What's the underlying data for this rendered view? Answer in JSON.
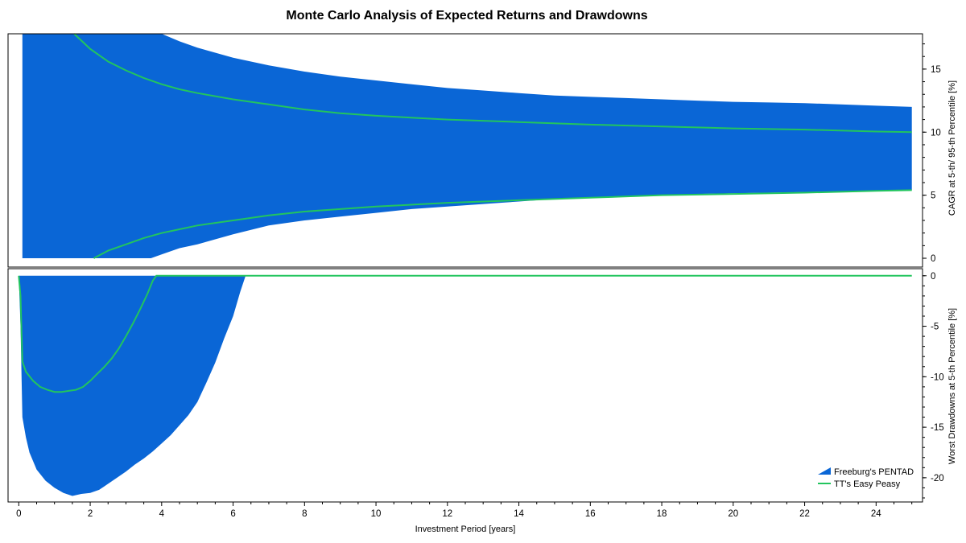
{
  "chart_data": {
    "type": "area",
    "title": "Monte Carlo Analysis of Expected Returns and Drawdowns",
    "xlabel": "Investment Period [years]",
    "xlim": [
      -0.3,
      25.3
    ],
    "x_ticks": [
      0,
      2,
      4,
      6,
      8,
      10,
      12,
      14,
      16,
      18,
      20,
      22,
      24
    ],
    "colors": {
      "band": "#0a66d6",
      "line": "#22c55e",
      "axis": "#000000"
    },
    "panels": [
      {
        "name": "cagr",
        "ylabel": "CAGR at 5-th/ 95-th Percentile [%]",
        "ylim": [
          -0.7,
          17.8
        ],
        "y_ticks": [
          0,
          5,
          10,
          15
        ],
        "series": [
          {
            "name": "Freeburg's PENTAD",
            "kind": "band",
            "x": [
              0.1,
              1,
              2,
              2.5,
              3,
              3.5,
              3.7,
              4,
              4.5,
              5,
              6,
              7,
              8,
              9,
              10,
              11,
              12,
              13,
              14,
              15,
              16,
              17,
              18,
              19,
              20,
              21,
              22,
              23,
              24,
              25
            ],
            "upper": [
              17.8,
              17.8,
              17.8,
              17.8,
              17.8,
              17.8,
              17.8,
              17.8,
              17.2,
              16.7,
              15.9,
              15.3,
              14.8,
              14.4,
              14.1,
              13.8,
              13.5,
              13.3,
              13.1,
              12.9,
              12.8,
              12.7,
              12.6,
              12.5,
              12.4,
              12.35,
              12.3,
              12.2,
              12.1,
              12.0
            ],
            "lower": [
              0,
              0,
              0,
              0,
              0,
              0,
              0,
              0.3,
              0.8,
              1.1,
              1.9,
              2.6,
              3.0,
              3.3,
              3.6,
              3.9,
              4.1,
              4.3,
              4.5,
              4.7,
              4.8,
              4.9,
              5.0,
              5.1,
              5.15,
              5.2,
              5.25,
              5.3,
              5.35,
              5.4
            ]
          },
          {
            "name": "TT's Easy Peasy",
            "kind": "line",
            "upper_line": {
              "x": [
                1.55,
                2,
                2.5,
                3,
                3.5,
                4,
                4.5,
                5,
                6,
                7,
                8,
                9,
                10,
                12,
                14,
                16,
                18,
                20,
                22,
                24,
                25
              ],
              "y": [
                17.8,
                16.6,
                15.6,
                14.9,
                14.3,
                13.8,
                13.4,
                13.1,
                12.6,
                12.2,
                11.8,
                11.5,
                11.3,
                11.0,
                10.8,
                10.6,
                10.45,
                10.3,
                10.2,
                10.05,
                10.0
              ]
            },
            "lower_line": {
              "x": [
                2.1,
                2.5,
                3,
                3.5,
                4,
                4.5,
                5,
                6,
                7,
                8,
                9,
                10,
                12,
                14,
                16,
                18,
                20,
                22,
                24,
                25
              ],
              "y": [
                0,
                0.6,
                1.1,
                1.6,
                2.0,
                2.3,
                2.6,
                3.0,
                3.4,
                3.7,
                3.9,
                4.1,
                4.4,
                4.6,
                4.8,
                5.0,
                5.1,
                5.2,
                5.35,
                5.4
              ]
            }
          }
        ]
      },
      {
        "name": "drawdown",
        "ylabel": "Worst Drawdowns at 5-th Percentile [%]",
        "ylim": [
          -22.4,
          0.7
        ],
        "y_ticks": [
          0,
          -5,
          -10,
          -15,
          -20
        ],
        "series": [
          {
            "name": "Freeburg's PENTAD",
            "kind": "band",
            "x": [
              0,
              0.05,
              0.1,
              0.2,
              0.3,
              0.5,
              0.75,
              1,
              1.25,
              1.5,
              1.75,
              2,
              2.25,
              2.5,
              2.75,
              3,
              3.25,
              3.5,
              3.75,
              4,
              4.25,
              4.5,
              4.75,
              5,
              5.25,
              5.5,
              5.75,
              6,
              6.2,
              6.35
            ],
            "upper": [
              0,
              0,
              0,
              0,
              0,
              0,
              0,
              0,
              0,
              0,
              0,
              0,
              0,
              0,
              0,
              0,
              0,
              0,
              0,
              0,
              0,
              0,
              0,
              0,
              0,
              0,
              0,
              0,
              0,
              0
            ],
            "lower": [
              0,
              -5,
              -14,
              -16,
              -17.5,
              -19.2,
              -20.3,
              -21.0,
              -21.5,
              -21.8,
              -21.6,
              -21.5,
              -21.2,
              -20.6,
              -20.0,
              -19.4,
              -18.7,
              -18.1,
              -17.4,
              -16.6,
              -15.8,
              -14.8,
              -13.8,
              -12.5,
              -10.6,
              -8.6,
              -6.2,
              -4.0,
              -1.6,
              0
            ]
          },
          {
            "name": "TT's Easy Peasy",
            "kind": "line",
            "x": [
              0,
              0.05,
              0.1,
              0.2,
              0.4,
              0.6,
              0.8,
              1.0,
              1.2,
              1.4,
              1.6,
              1.8,
              2.0,
              2.2,
              2.4,
              2.6,
              2.8,
              3.0,
              3.2,
              3.4,
              3.6,
              3.75,
              3.85,
              4,
              6,
              8,
              10,
              12,
              14,
              16,
              18,
              20,
              22,
              24,
              25
            ],
            "y": [
              0,
              -2,
              -8.5,
              -9.5,
              -10.4,
              -11.0,
              -11.3,
              -11.5,
              -11.5,
              -11.4,
              -11.3,
              -11.0,
              -10.4,
              -9.7,
              -9.0,
              -8.2,
              -7.2,
              -6.0,
              -4.7,
              -3.3,
              -1.8,
              -0.5,
              0,
              0,
              0,
              0,
              0,
              0,
              0,
              0,
              0,
              0,
              0,
              0,
              0
            ]
          }
        ]
      }
    ],
    "legend": {
      "position": "bottom-right",
      "entries": [
        "Freeburg's PENTAD",
        "TT's Easy Peasy"
      ]
    }
  }
}
